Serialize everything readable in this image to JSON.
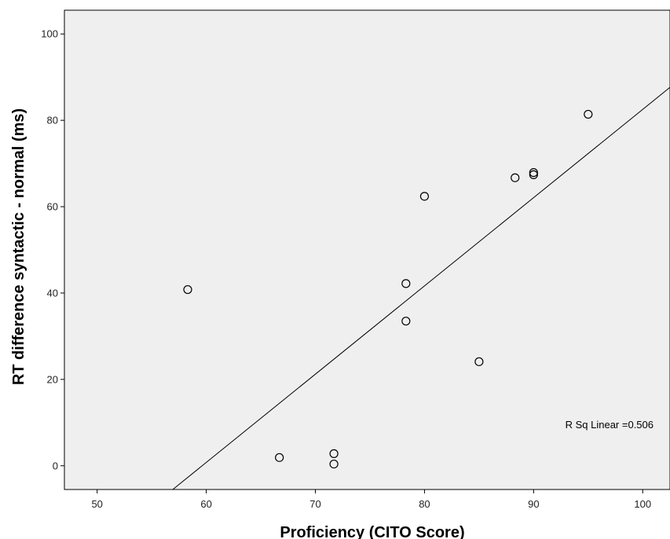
{
  "chart_data": {
    "type": "scatter",
    "xlabel": "Proficiency (CITO Score)",
    "ylabel": "RT difference syntactic - normal (ms)",
    "xlim": [
      47,
      102.5
    ],
    "ylim": [
      -5.5,
      105.5
    ],
    "x_ticks": [
      50,
      60,
      70,
      80,
      90,
      100
    ],
    "y_ticks": [
      0,
      20,
      40,
      60,
      80,
      100
    ],
    "x_tick_labels": [
      "50",
      "60",
      "70",
      "80",
      "90",
      "100"
    ],
    "y_tick_labels": [
      "0",
      "20",
      "40",
      "60",
      "80",
      "100"
    ],
    "points": [
      {
        "x": 58.3,
        "y": 40.8
      },
      {
        "x": 66.7,
        "y": 1.9
      },
      {
        "x": 71.7,
        "y": 2.8
      },
      {
        "x": 71.7,
        "y": 0.4
      },
      {
        "x": 78.3,
        "y": 42.2
      },
      {
        "x": 78.3,
        "y": 33.5
      },
      {
        "x": 80.0,
        "y": 62.4
      },
      {
        "x": 85.0,
        "y": 24.1
      },
      {
        "x": 88.3,
        "y": 66.7
      },
      {
        "x": 90.0,
        "y": 67.9
      },
      {
        "x": 90.0,
        "y": 67.4
      },
      {
        "x": 95.0,
        "y": 81.4
      }
    ],
    "fit_line": {
      "slope": 2.044,
      "intercept": -121.87
    },
    "annotation": "R Sq Linear =0.506",
    "grid": false,
    "background": "#efefef",
    "marker_color": "#000000",
    "line_color": "#000000"
  }
}
